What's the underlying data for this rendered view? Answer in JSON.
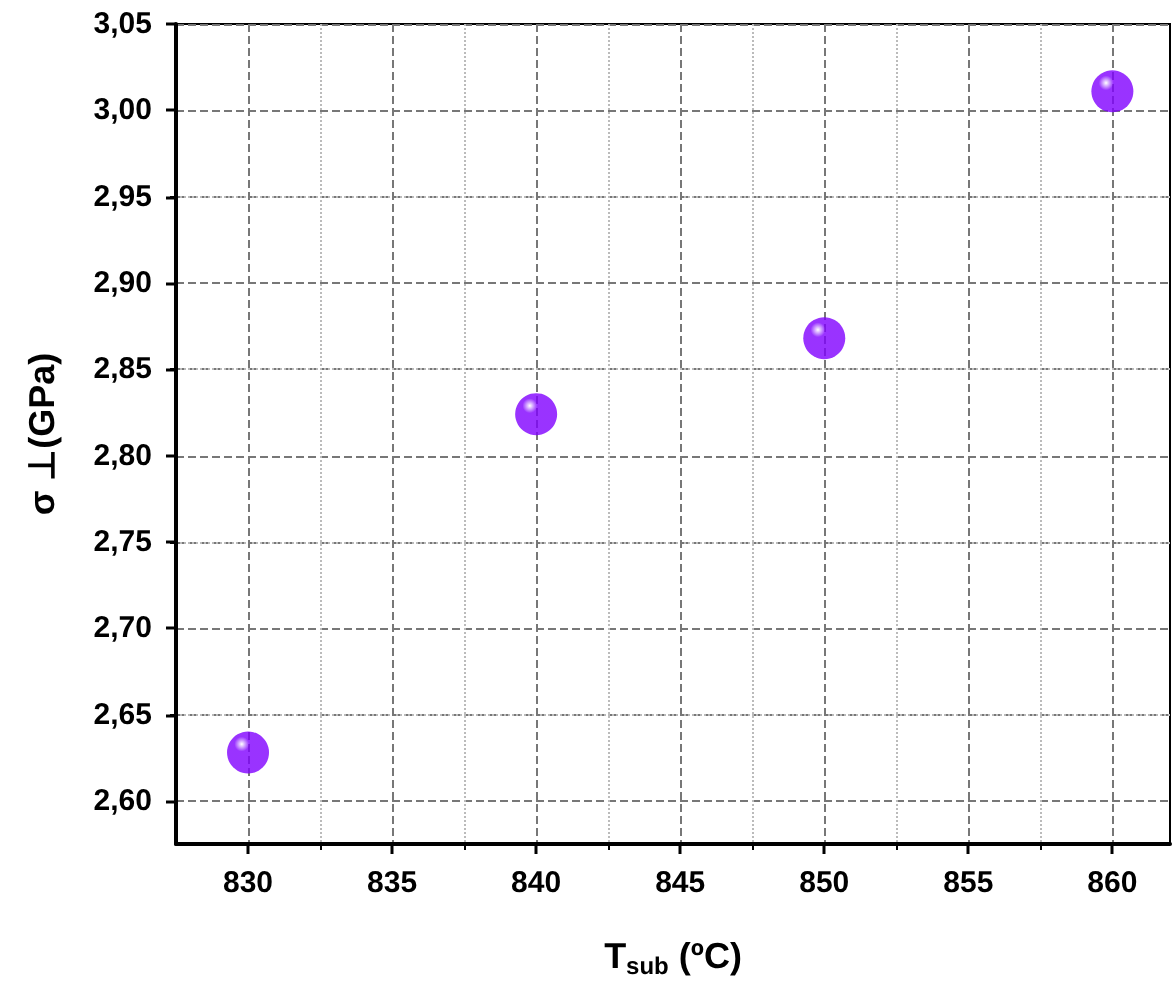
{
  "chart_data": {
    "type": "scatter",
    "xlabel": "T$_{sub}$ (ºC)",
    "ylabel": "σ ⊥(GPa)",
    "x": [
      830,
      840,
      850,
      860
    ],
    "series": [
      {
        "color": "#8000ff",
        "values": [
          2.628,
          2.824,
          2.868,
          3.011
        ]
      }
    ],
    "xlim": [
      827.5,
      862
    ],
    "ylim": [
      2.575,
      3.05
    ],
    "xticks": [
      830,
      835,
      840,
      845,
      850,
      855,
      860
    ],
    "yticks": [
      {
        "value": 2.6,
        "label": "2,60"
      },
      {
        "value": 2.65,
        "label": "2,65"
      },
      {
        "value": 2.7,
        "label": "2,70"
      },
      {
        "value": 2.75,
        "label": "2,75"
      },
      {
        "value": 2.8,
        "label": "2,80"
      },
      {
        "value": 2.85,
        "label": "2,85"
      },
      {
        "value": 2.9,
        "label": "2,90"
      },
      {
        "value": 2.95,
        "label": "2,95"
      },
      {
        "value": 3.0,
        "label": "3,00"
      },
      {
        "value": 3.05,
        "label": "3,05"
      }
    ],
    "grid": true,
    "marker": "circle"
  }
}
